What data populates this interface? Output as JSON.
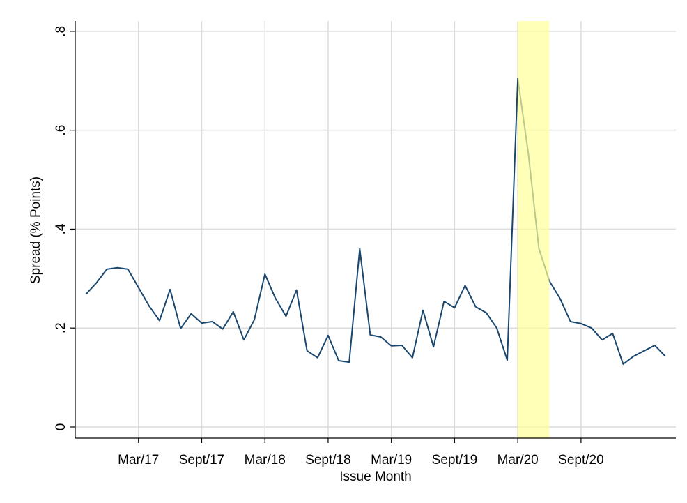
{
  "chart_data": {
    "type": "line",
    "x_label": "Issue Month",
    "y_label": "Spread (% Points)",
    "x": [
      "2016-10",
      "2016-11",
      "2016-12",
      "2017-01",
      "2017-02",
      "2017-03",
      "2017-04",
      "2017-05",
      "2017-06",
      "2017-07",
      "2017-08",
      "2017-09",
      "2017-10",
      "2017-11",
      "2017-12",
      "2018-01",
      "2018-02",
      "2018-03",
      "2018-04",
      "2018-05",
      "2018-06",
      "2018-07",
      "2018-08",
      "2018-09",
      "2018-10",
      "2018-11",
      "2018-12",
      "2019-01",
      "2019-02",
      "2019-03",
      "2019-04",
      "2019-05",
      "2019-06",
      "2019-07",
      "2019-08",
      "2019-09",
      "2019-10",
      "2019-11",
      "2019-12",
      "2020-01",
      "2020-02",
      "2020-03",
      "2020-04",
      "2020-05",
      "2020-06",
      "2020-07",
      "2020-08",
      "2020-09",
      "2020-10",
      "2020-11",
      "2020-12",
      "2021-01",
      "2021-02",
      "2021-03",
      "2021-04",
      "2021-05"
    ],
    "series": [
      {
        "color": "#1a476f",
        "values": [
          0.268,
          0.291,
          0.319,
          0.322,
          0.319,
          0.282,
          0.245,
          0.215,
          0.278,
          0.199,
          0.229,
          0.21,
          0.213,
          0.198,
          0.233,
          0.176,
          0.217,
          0.309,
          0.26,
          0.224,
          0.277,
          0.154,
          0.14,
          0.185,
          0.134,
          0.131,
          0.36,
          0.186,
          0.182,
          0.164,
          0.165,
          0.14,
          0.236,
          0.162,
          0.254,
          0.241,
          0.286,
          0.243,
          0.231,
          0.2,
          0.135,
          0.704,
          0.553,
          0.361,
          0.295,
          0.26,
          0.213,
          0.209,
          0.2,
          0.176,
          0.189,
          0.127,
          0.143,
          0.154,
          0.165,
          0.143
        ]
      }
    ],
    "highlight": {
      "range": [
        "2020-03",
        "2020-06"
      ],
      "color": "#ffff99"
    },
    "xlim": [
      "2016-09",
      "2021-06"
    ],
    "xticks": [
      {
        "value": "2017-03",
        "label": "Mar/17"
      },
      {
        "value": "2017-09",
        "label": "Sept/17"
      },
      {
        "value": "2018-03",
        "label": "Mar/18"
      },
      {
        "value": "2018-09",
        "label": "Sept/18"
      },
      {
        "value": "2019-03",
        "label": "Mar/19"
      },
      {
        "value": "2019-09",
        "label": "Sept/19"
      },
      {
        "value": "2020-03",
        "label": "Mar/20"
      },
      {
        "value": "2020-09",
        "label": "Sept/20"
      }
    ],
    "ylim": [
      -0.0226,
      0.821
    ],
    "yticks": [
      {
        "value": 0,
        "label": "0"
      },
      {
        "value": 0.2,
        "label": ".2"
      },
      {
        "value": 0.4,
        "label": ".4"
      },
      {
        "value": 0.6,
        "label": ".6"
      },
      {
        "value": 0.8,
        "label": ".8"
      }
    ],
    "grid": true
  }
}
